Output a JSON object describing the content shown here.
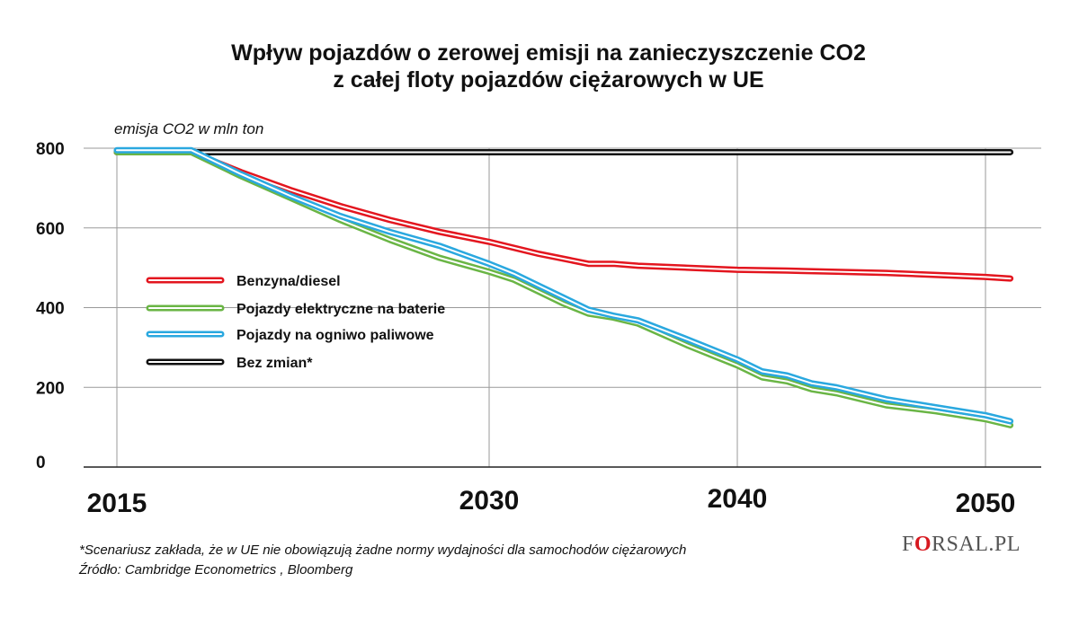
{
  "header": {
    "title_line1": "Wpływ pojazdów o zerowej emisji na zanieczyszczenie CO2",
    "title_line2": "z całej floty pojazdów ciężarowych w UE"
  },
  "chart_data": {
    "type": "line",
    "title": "Wpływ pojazdów o zerowej emisji na zanieczyszczenie CO2 z całej floty pojazdów ciężarowych w UE",
    "ylabel": "emisja CO2 w mln ton",
    "xlabel": "",
    "ylim": [
      0,
      800
    ],
    "xlim": [
      2015,
      2052
    ],
    "yticks": [
      0,
      200,
      400,
      600,
      800
    ],
    "xticks": [
      2015,
      2030,
      2040,
      2050
    ],
    "grid": "horizontal and vertical at ticks",
    "legend_placement": "left-middle",
    "series": [
      {
        "name": "Benzyna/diesel",
        "color": "#e3161f",
        "x": [
          2015,
          2018,
          2020,
          2022,
          2024,
          2026,
          2028,
          2030,
          2032,
          2034,
          2035,
          2036,
          2038,
          2040,
          2042,
          2044,
          2046,
          2048,
          2050,
          2051
        ],
        "values": [
          790,
          790,
          740,
          695,
          655,
          620,
          590,
          565,
          535,
          510,
          510,
          505,
          500,
          495,
          493,
          490,
          487,
          482,
          477,
          473
        ]
      },
      {
        "name": "Pojazdy elektryczne na baterie",
        "color": "#6ab545",
        "x": [
          2015,
          2018,
          2020,
          2022,
          2024,
          2026,
          2028,
          2030,
          2031,
          2032,
          2033,
          2034,
          2035,
          2036,
          2038,
          2040,
          2041,
          2042,
          2043,
          2044,
          2046,
          2048,
          2050,
          2051
        ],
        "values": [
          790,
          790,
          730,
          675,
          620,
          570,
          525,
          490,
          470,
          440,
          410,
          385,
          375,
          360,
          305,
          255,
          225,
          215,
          195,
          185,
          155,
          140,
          120,
          105
        ]
      },
      {
        "name": "Pojazdy na ogniwo paliwowe",
        "color": "#2aa8df",
        "x": [
          2015,
          2018,
          2020,
          2022,
          2024,
          2026,
          2028,
          2030,
          2031,
          2032,
          2033,
          2034,
          2035,
          2036,
          2038,
          2040,
          2041,
          2042,
          2043,
          2044,
          2046,
          2048,
          2050,
          2051
        ],
        "values": [
          795,
          795,
          735,
          680,
          630,
          590,
          555,
          510,
          485,
          455,
          425,
          395,
          380,
          368,
          320,
          270,
          240,
          230,
          210,
          200,
          170,
          150,
          130,
          115
        ]
      },
      {
        "name": "Bez zmian*",
        "color": "#111111",
        "x": [
          2015,
          2051
        ],
        "values": [
          790,
          790
        ]
      }
    ]
  },
  "footnote": {
    "line1": "*Scenariusz zakłada, że w UE nie obowiązują żadne normy wydajności dla samochodów ciężarowych",
    "line2": "Źródło: Cambridge Econometrics , Bloomberg"
  },
  "logo": {
    "before": "F",
    "highlight": "O",
    "after": "RSAL.PL",
    "color": "#d71920"
  }
}
